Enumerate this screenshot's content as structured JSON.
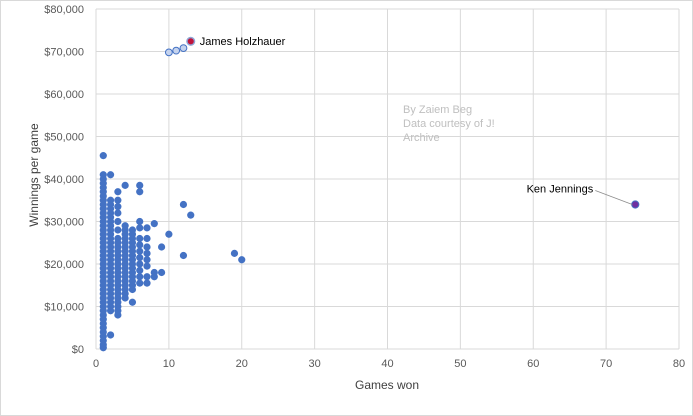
{
  "chart_data": {
    "type": "scatter",
    "title": "",
    "xlabel": "Games won",
    "ylabel": "Winnings per game",
    "xlim": [
      0,
      80
    ],
    "ylim": [
      0,
      80000
    ],
    "x_ticks": [
      "0",
      "10",
      "20",
      "30",
      "40",
      "50",
      "60",
      "70",
      "80"
    ],
    "y_ticks": [
      "$0",
      "$10,000",
      "$20,000",
      "$30,000",
      "$40,000",
      "$50,000",
      "$60,000",
      "$70,000",
      "$80,000"
    ],
    "grid": "vertical and horizontal major gridlines",
    "legend": "none",
    "series_color": "#4472c4",
    "highlight_colors": {
      "holzhauer_final": "#c0143c",
      "holzhauer_run": "#c5d3ee",
      "jennings": "#7030a0"
    },
    "annotations": [
      {
        "text": "James Holzhauer",
        "x": 13,
        "y": 72500
      },
      {
        "text": "Ken Jennings",
        "x": 74,
        "y": 34000
      }
    ],
    "credit_lines": [
      "By Zaiem Beg",
      "Data courtesy of J!",
      "Archive"
    ],
    "series": [
      {
        "points": [
          [
            1,
            45500
          ],
          [
            1,
            41000
          ],
          [
            1,
            40000
          ],
          [
            1,
            39000
          ],
          [
            1,
            38000
          ],
          [
            1,
            37000
          ],
          [
            1,
            36000
          ],
          [
            1,
            35000
          ],
          [
            1,
            34000
          ],
          [
            1,
            33000
          ],
          [
            1,
            32000
          ],
          [
            1,
            31000
          ],
          [
            1,
            30000
          ],
          [
            1,
            29000
          ],
          [
            1,
            28000
          ],
          [
            1,
            27000
          ],
          [
            1,
            26000
          ],
          [
            1,
            25000
          ],
          [
            1,
            24000
          ],
          [
            1,
            23000
          ],
          [
            1,
            22000
          ],
          [
            1,
            21000
          ],
          [
            1,
            20000
          ],
          [
            1,
            19000
          ],
          [
            1,
            18000
          ],
          [
            1,
            17000
          ],
          [
            1,
            16000
          ],
          [
            1,
            15000
          ],
          [
            1,
            14000
          ],
          [
            1,
            13000
          ],
          [
            1,
            12000
          ],
          [
            1,
            11000
          ],
          [
            1,
            10000
          ],
          [
            1,
            9000
          ],
          [
            1,
            8000
          ],
          [
            1,
            7000
          ],
          [
            1,
            6000
          ],
          [
            1,
            5000
          ],
          [
            1,
            4000
          ],
          [
            1,
            3000
          ],
          [
            1,
            2000
          ],
          [
            1,
            1000
          ],
          [
            1,
            300
          ],
          [
            2,
            41000
          ],
          [
            2,
            35000
          ],
          [
            2,
            34000
          ],
          [
            2,
            33000
          ],
          [
            2,
            32000
          ],
          [
            2,
            31000
          ],
          [
            2,
            30000
          ],
          [
            2,
            29000
          ],
          [
            2,
            28000
          ],
          [
            2,
            27000
          ],
          [
            2,
            26000
          ],
          [
            2,
            25000
          ],
          [
            2,
            24000
          ],
          [
            2,
            23000
          ],
          [
            2,
            22000
          ],
          [
            2,
            21000
          ],
          [
            2,
            20000
          ],
          [
            2,
            19000
          ],
          [
            2,
            18000
          ],
          [
            2,
            17000
          ],
          [
            2,
            16000
          ],
          [
            2,
            15000
          ],
          [
            2,
            14000
          ],
          [
            2,
            13000
          ],
          [
            2,
            12000
          ],
          [
            2,
            11000
          ],
          [
            2,
            10000
          ],
          [
            2,
            9000
          ],
          [
            2,
            3300
          ],
          [
            3,
            37000
          ],
          [
            3,
            35000
          ],
          [
            3,
            33500
          ],
          [
            3,
            32000
          ],
          [
            3,
            30000
          ],
          [
            3,
            28000
          ],
          [
            3,
            26000
          ],
          [
            3,
            25000
          ],
          [
            3,
            24000
          ],
          [
            3,
            23000
          ],
          [
            3,
            22000
          ],
          [
            3,
            21000
          ],
          [
            3,
            20000
          ],
          [
            3,
            19000
          ],
          [
            3,
            18000
          ],
          [
            3,
            17000
          ],
          [
            3,
            16000
          ],
          [
            3,
            15000
          ],
          [
            3,
            14000
          ],
          [
            3,
            13000
          ],
          [
            3,
            12000
          ],
          [
            3,
            11000
          ],
          [
            3,
            10000
          ],
          [
            3,
            9000
          ],
          [
            3,
            8000
          ],
          [
            4,
            38500
          ],
          [
            4,
            29000
          ],
          [
            4,
            28000
          ],
          [
            4,
            27000
          ],
          [
            4,
            26000
          ],
          [
            4,
            25000
          ],
          [
            4,
            24000
          ],
          [
            4,
            23000
          ],
          [
            4,
            22000
          ],
          [
            4,
            21000
          ],
          [
            4,
            20000
          ],
          [
            4,
            19000
          ],
          [
            4,
            18000
          ],
          [
            4,
            17000
          ],
          [
            4,
            16000
          ],
          [
            4,
            15000
          ],
          [
            4,
            14000
          ],
          [
            4,
            13000
          ],
          [
            4,
            12000
          ],
          [
            5,
            28000
          ],
          [
            5,
            27000
          ],
          [
            5,
            26000
          ],
          [
            5,
            25000
          ],
          [
            5,
            24000
          ],
          [
            5,
            23000
          ],
          [
            5,
            22000
          ],
          [
            5,
            21000
          ],
          [
            5,
            20000
          ],
          [
            5,
            19000
          ],
          [
            5,
            18000
          ],
          [
            5,
            17000
          ],
          [
            5,
            16000
          ],
          [
            5,
            15000
          ],
          [
            5,
            14000
          ],
          [
            5,
            11000
          ],
          [
            6,
            38500
          ],
          [
            6,
            37000
          ],
          [
            6,
            30000
          ],
          [
            6,
            28500
          ],
          [
            6,
            26000
          ],
          [
            6,
            24500
          ],
          [
            6,
            23000
          ],
          [
            6,
            21500
          ],
          [
            6,
            20000
          ],
          [
            6,
            18500
          ],
          [
            6,
            17000
          ],
          [
            6,
            15500
          ],
          [
            7,
            28500
          ],
          [
            7,
            26000
          ],
          [
            7,
            24000
          ],
          [
            7,
            22500
          ],
          [
            7,
            21000
          ],
          [
            7,
            19500
          ],
          [
            7,
            17000
          ],
          [
            7,
            15500
          ],
          [
            8,
            29500
          ],
          [
            8,
            18000
          ],
          [
            8,
            17000
          ],
          [
            9,
            24000
          ],
          [
            9,
            18000
          ],
          [
            10,
            27000
          ],
          [
            12,
            34000
          ],
          [
            12,
            22000
          ],
          [
            13,
            31500
          ],
          [
            19,
            22500
          ],
          [
            20,
            21000
          ]
        ]
      },
      {
        "name": "James Holzhauer",
        "points": [
          [
            10,
            69800
          ],
          [
            11,
            70200
          ],
          [
            12,
            70800
          ]
        ],
        "final_point": [
          13,
          72400
        ]
      },
      {
        "name": "Ken Jennings",
        "points": [
          [
            74,
            34000
          ]
        ]
      }
    ]
  }
}
